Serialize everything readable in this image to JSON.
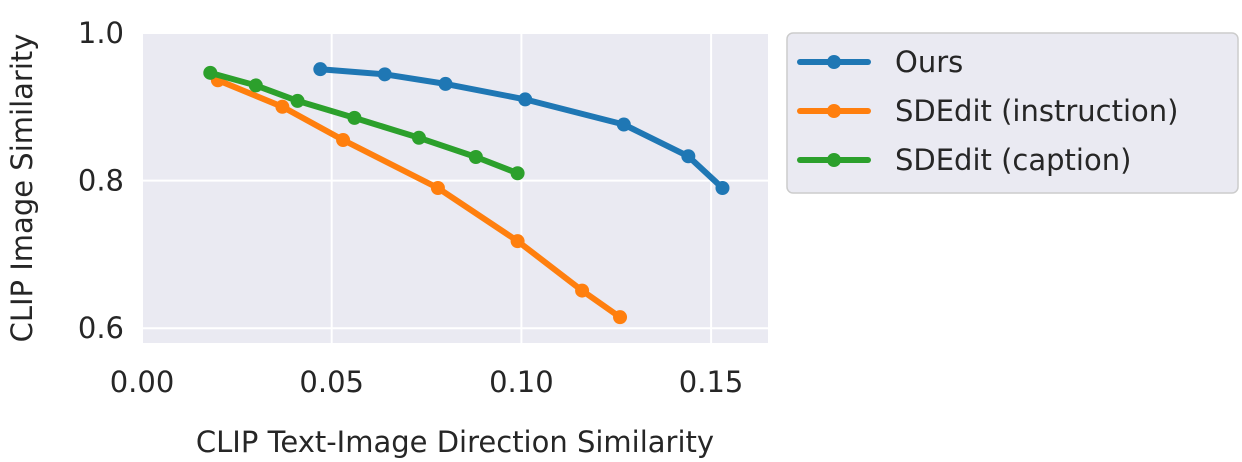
{
  "chart_data": {
    "type": "line",
    "title": "",
    "xlabel": "CLIP Text-Image Direction Similarity",
    "ylabel": "CLIP Image Similarity",
    "xlim": [
      0.0,
      0.165
    ],
    "ylim": [
      0.58,
      1.0
    ],
    "xticks": [
      0.0,
      0.05,
      0.1,
      0.15
    ],
    "xtick_labels": [
      "0.00",
      "0.05",
      "0.10",
      "0.15"
    ],
    "yticks": [
      0.6,
      0.8,
      1.0
    ],
    "ytick_labels": [
      "0.6",
      "0.8",
      "1.0"
    ],
    "grid": true,
    "legend_position": "outside-right-top",
    "series": [
      {
        "name": "Ours",
        "color": "#1f77b4",
        "x": [
          0.047,
          0.064,
          0.08,
          0.101,
          0.127,
          0.144,
          0.153
        ],
        "y": [
          0.951,
          0.944,
          0.931,
          0.91,
          0.876,
          0.833,
          0.79
        ]
      },
      {
        "name": "SDEdit (instruction)",
        "color": "#ff7f0e",
        "x": [
          0.02,
          0.037,
          0.053,
          0.078,
          0.099,
          0.116,
          0.126
        ],
        "y": [
          0.936,
          0.9,
          0.855,
          0.79,
          0.718,
          0.651,
          0.615
        ]
      },
      {
        "name": "SDEdit (caption)",
        "color": "#2ca02c",
        "x": [
          0.018,
          0.03,
          0.041,
          0.056,
          0.073,
          0.088,
          0.099
        ],
        "y": [
          0.946,
          0.929,
          0.908,
          0.885,
          0.858,
          0.832,
          0.81
        ]
      }
    ]
  }
}
